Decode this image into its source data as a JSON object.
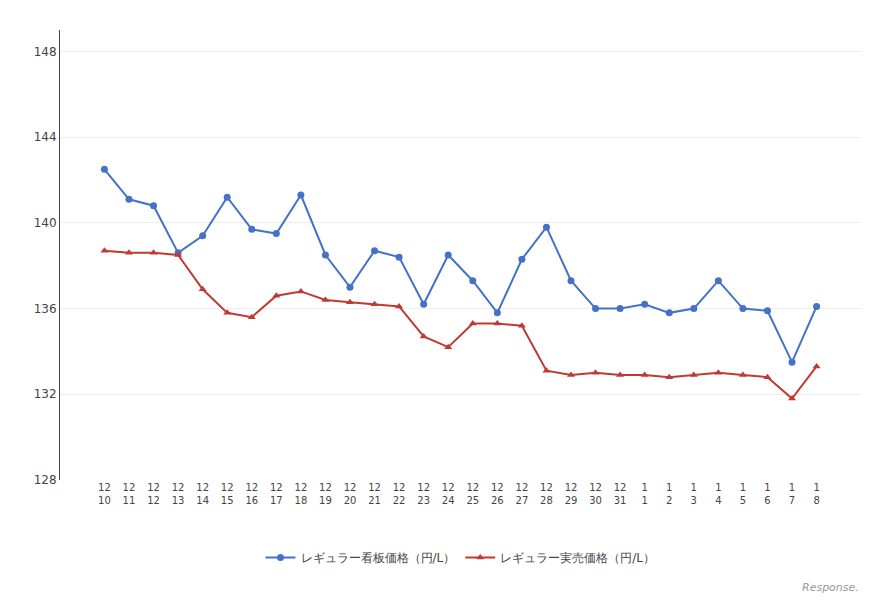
{
  "chart_data": {
    "type": "line",
    "categories": [
      "12\n10",
      "12\n11",
      "12\n12",
      "12\n13",
      "12\n14",
      "12\n15",
      "12\n16",
      "12\n17",
      "12\n18",
      "12\n19",
      "12\n20",
      "12\n21",
      "12\n22",
      "12\n23",
      "12\n24",
      "12\n25",
      "12\n26",
      "12\n27",
      "12\n28",
      "12\n29",
      "12\n30",
      "12\n31",
      "1\n1",
      "1\n2",
      "1\n3",
      "1\n4",
      "1\n5",
      "1\n6",
      "1\n7",
      "1\n8"
    ],
    "series": [
      {
        "name": "レギュラー看板価格（円/L）",
        "color": "#4472C4",
        "marker": "circle",
        "values": [
          142.5,
          141.1,
          140.8,
          138.6,
          139.4,
          141.2,
          139.7,
          139.5,
          141.3,
          138.5,
          137.0,
          138.7,
          138.4,
          136.2,
          138.5,
          137.3,
          135.8,
          138.3,
          139.8,
          137.3,
          136.0,
          136.0,
          136.2,
          135.8,
          136.0,
          137.3,
          136.0,
          135.9,
          133.5,
          136.1
        ]
      },
      {
        "name": "レギュラー実売価格（円/L）",
        "color": "#BE3A34",
        "marker": "triangle-up",
        "values": [
          138.7,
          138.6,
          138.6,
          138.5,
          136.9,
          135.8,
          135.6,
          136.6,
          136.8,
          136.4,
          136.3,
          136.2,
          136.1,
          134.7,
          134.2,
          135.3,
          135.3,
          135.2,
          133.1,
          132.9,
          133.0,
          132.9,
          132.9,
          132.8,
          132.9,
          133.0,
          132.9,
          132.8,
          131.8,
          133.3
        ]
      }
    ],
    "ylim": [
      128,
      149
    ],
    "yticks": [
      128,
      132,
      136,
      140,
      144,
      148
    ],
    "grid": true,
    "legend": "bottom",
    "annotations": [
      "Response."
    ]
  }
}
